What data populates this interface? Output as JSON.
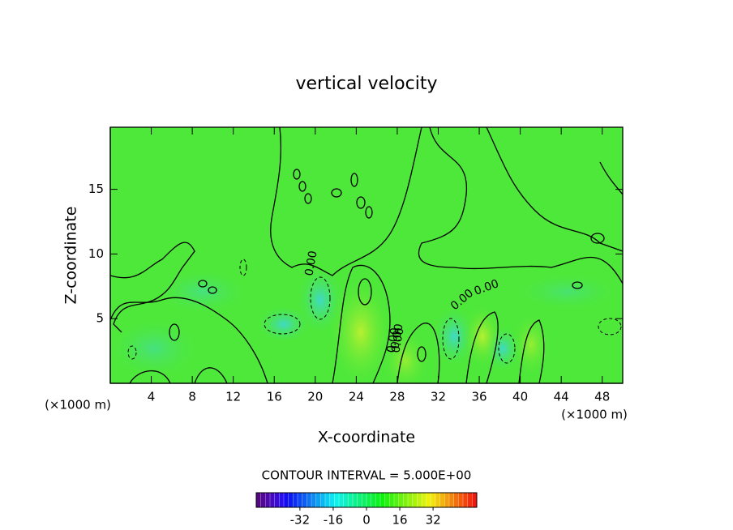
{
  "chart_data": {
    "type": "contour",
    "title": "vertical velocity",
    "x_label": "X-coordinate",
    "y_label": "Z-coordinate",
    "x_unit_label": "(×1000 m)",
    "y_unit_label": "(×1000 m)",
    "contour_interval_label": "CONTOUR INTERVAL = 5.000E+00",
    "contour_labels": [
      "0.00",
      "0.00",
      "0.00",
      "0.00",
      "0.00",
      "0.00"
    ],
    "xlim": [
      0,
      50
    ],
    "xticks": [
      4,
      8,
      12,
      16,
      20,
      24,
      28,
      32,
      36,
      40,
      44,
      48
    ],
    "ylim": [
      0,
      19.8
    ],
    "yticks": [
      5,
      10,
      15
    ],
    "colorbar": {
      "lim": [
        -53,
        53
      ],
      "ticks": [
        -32,
        -16,
        0,
        16,
        32
      ],
      "colormap": "rainbow"
    }
  }
}
